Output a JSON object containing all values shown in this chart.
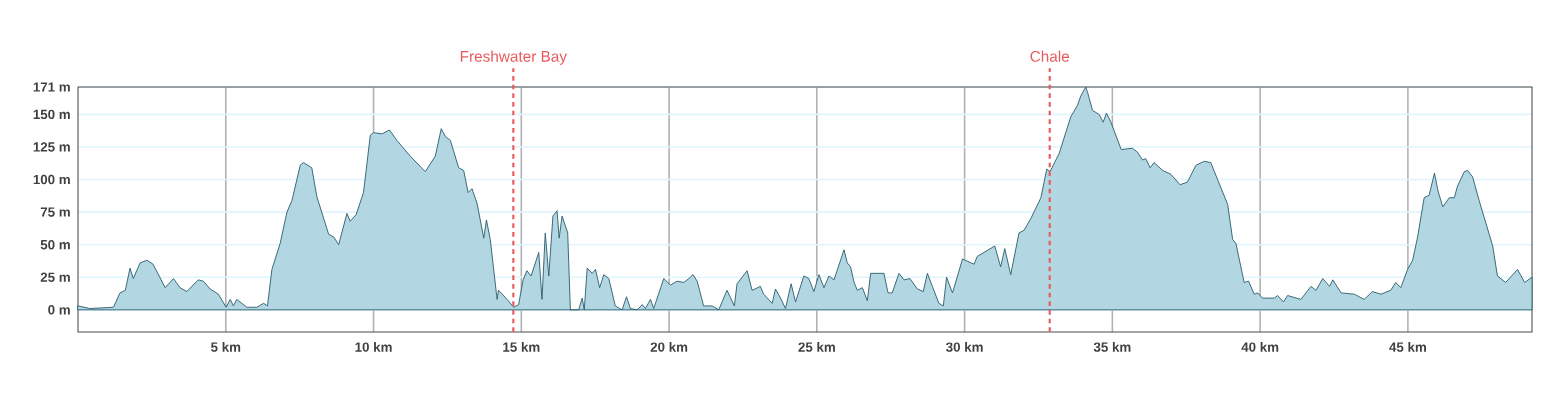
{
  "chart_data": {
    "type": "area",
    "x": [
      0,
      0.4,
      1.2,
      1.42,
      1.6,
      1.76,
      1.87,
      2.1,
      2.33,
      2.54,
      2.95,
      3.23,
      3.45,
      3.68,
      4.07,
      4.24,
      4.47,
      4.75,
      5.01,
      5.15,
      5.26,
      5.37,
      5.71,
      6.05,
      6.28,
      6.41,
      6.56,
      6.84,
      7.07,
      7.24,
      7.52,
      7.63,
      7.91,
      8.08,
      8.48,
      8.65,
      8.82,
      9.1,
      9.21,
      9.41,
      9.66,
      9.89,
      10.0,
      10.28,
      10.54,
      10.79,
      11.24,
      11.75,
      12.09,
      12.29,
      12.43,
      12.6,
      12.88,
      13.05,
      13.2,
      13.33,
      13.5,
      13.73,
      13.82,
      13.95,
      14.18,
      14.23,
      14.52,
      14.74,
      14.91,
      15.06,
      15.19,
      15.33,
      15.59,
      15.7,
      15.81,
      15.93,
      16.07,
      16.21,
      16.28,
      16.38,
      16.57,
      16.66,
      16.94,
      17.06,
      17.13,
      17.23,
      17.4,
      17.51,
      17.65,
      17.79,
      17.96,
      18.18,
      18.41,
      18.56,
      18.69,
      18.92,
      19.09,
      19.2,
      19.37,
      19.48,
      19.82,
      20.05,
      20.27,
      20.5,
      20.67,
      20.81,
      20.95,
      21.17,
      21.46,
      21.68,
      21.96,
      22.21,
      22.3,
      22.64,
      22.81,
      23.09,
      23.2,
      23.49,
      23.6,
      23.77,
      23.94,
      24.13,
      24.28,
      24.56,
      24.73,
      24.9,
      25.07,
      25.24,
      25.41,
      25.58,
      25.92,
      26.03,
      26.14,
      26.26,
      26.37,
      26.54,
      26.71,
      26.82,
      27.27,
      27.41,
      27.55,
      27.78,
      27.95,
      28.15,
      28.4,
      28.6,
      28.74,
      28.91,
      29.13,
      29.28,
      29.39,
      29.59,
      29.93,
      30.32,
      30.43,
      31.02,
      31.22,
      31.36,
      31.56,
      31.84,
      32.01,
      32.24,
      32.58,
      32.78,
      32.89,
      33.2,
      33.59,
      33.82,
      33.93,
      34.1,
      34.16,
      34.33,
      34.55,
      34.69,
      34.8,
      34.95,
      35.3,
      35.68,
      35.85,
      36.02,
      36.13,
      36.28,
      36.41,
      36.7,
      36.98,
      37.29,
      37.54,
      37.83,
      38.11,
      38.33,
      38.56,
      38.9,
      39.07,
      39.18,
      39.46,
      39.61,
      39.8,
      39.92,
      40.08,
      40.48,
      40.59,
      40.79,
      40.93,
      41.38,
      41.72,
      41.89,
      42.12,
      42.35,
      42.46,
      42.74,
      43.19,
      43.52,
      43.8,
      44.09,
      44.42,
      44.59,
      44.76,
      44.99,
      45.16,
      45.33,
      45.55,
      45.72,
      45.9,
      46.01,
      46.18,
      46.4,
      46.57,
      46.68,
      46.91,
      47.02,
      47.19,
      47.41,
      47.87,
      48.03,
      48.31,
      48.71,
      48.95,
      49.2
    ],
    "values": [
      3,
      1,
      2,
      13,
      15,
      32,
      24,
      36,
      38,
      35,
      17,
      24,
      17,
      14,
      23,
      22,
      16,
      12,
      2,
      8,
      3,
      8,
      2,
      2,
      5,
      3,
      31,
      51,
      75,
      84,
      111,
      113,
      109,
      87,
      58,
      56,
      50,
      74,
      68,
      73,
      90,
      134,
      136,
      135,
      138,
      130,
      118,
      106,
      118,
      139,
      133,
      130,
      109,
      107,
      90,
      93,
      82,
      55,
      69,
      54,
      8,
      15,
      8,
      2,
      4,
      23,
      30,
      26,
      44,
      8,
      59,
      26,
      72,
      76,
      55,
      72,
      59,
      0,
      0,
      9,
      0,
      32,
      28,
      31,
      17,
      27,
      24,
      3,
      0,
      10,
      1,
      0,
      4,
      1,
      8,
      1,
      24,
      19,
      22,
      21,
      24,
      27,
      22,
      3,
      3,
      0,
      15,
      3,
      20,
      30,
      15,
      18,
      12,
      5,
      16,
      9,
      1,
      20,
      6,
      26,
      24,
      14,
      27,
      17,
      26,
      23,
      46,
      36,
      33,
      21,
      15,
      17,
      7,
      28,
      28,
      13,
      13,
      28,
      23,
      24,
      16,
      14,
      28,
      18,
      5,
      3,
      25,
      13,
      39,
      35,
      41,
      49,
      33,
      47,
      27,
      59,
      61,
      70,
      86,
      108,
      106,
      120,
      148,
      157,
      164,
      171,
      167,
      153,
      150,
      144,
      151,
      144,
      123,
      124,
      121,
      115,
      116,
      109,
      113,
      107,
      104,
      96,
      98,
      111,
      114,
      113,
      100,
      81,
      54,
      51,
      21,
      22,
      12,
      13,
      9,
      9,
      11,
      6,
      11,
      8,
      18,
      15,
      24,
      18,
      23,
      13,
      12,
      8,
      14,
      12,
      15,
      21,
      17,
      31,
      38,
      56,
      86,
      88,
      105,
      92,
      79,
      86,
      86,
      95,
      106,
      107,
      102,
      84,
      49,
      26,
      21,
      31,
      21,
      25
    ],
    "color": "#2f6170",
    "xlim": [
      0,
      49.2
    ],
    "ylim": [
      -17,
      171
    ],
    "xticks": [
      {
        "value": 5,
        "label": "5 km"
      },
      {
        "value": 10,
        "label": "10 km"
      },
      {
        "value": 15,
        "label": "15 km"
      },
      {
        "value": 20,
        "label": "20 km"
      },
      {
        "value": 25,
        "label": "25 km"
      },
      {
        "value": 30,
        "label": "30 km"
      },
      {
        "value": 35,
        "label": "35 km"
      },
      {
        "value": 40,
        "label": "40 km"
      },
      {
        "value": 45,
        "label": "45 km"
      }
    ],
    "yticks": [
      {
        "value": 0,
        "label": "0 m"
      },
      {
        "value": 25,
        "label": "25 m"
      },
      {
        "value": 50,
        "label": "50 m"
      },
      {
        "value": 75,
        "label": "75 m"
      },
      {
        "value": 100,
        "label": "100 m"
      },
      {
        "value": 125,
        "label": "125 m"
      },
      {
        "value": 150,
        "label": "150 m"
      },
      {
        "value": 171,
        "label": "171 m"
      }
    ],
    "grid": true,
    "ref_lines": [
      {
        "axis": "x",
        "value": 14.73,
        "label": "Freshwater Bay",
        "color": "#e8595b",
        "line_style": "dashed"
      },
      {
        "axis": "x",
        "value": 32.88,
        "label": "Chale",
        "color": "#e8595b",
        "line_style": "dashed"
      }
    ]
  }
}
